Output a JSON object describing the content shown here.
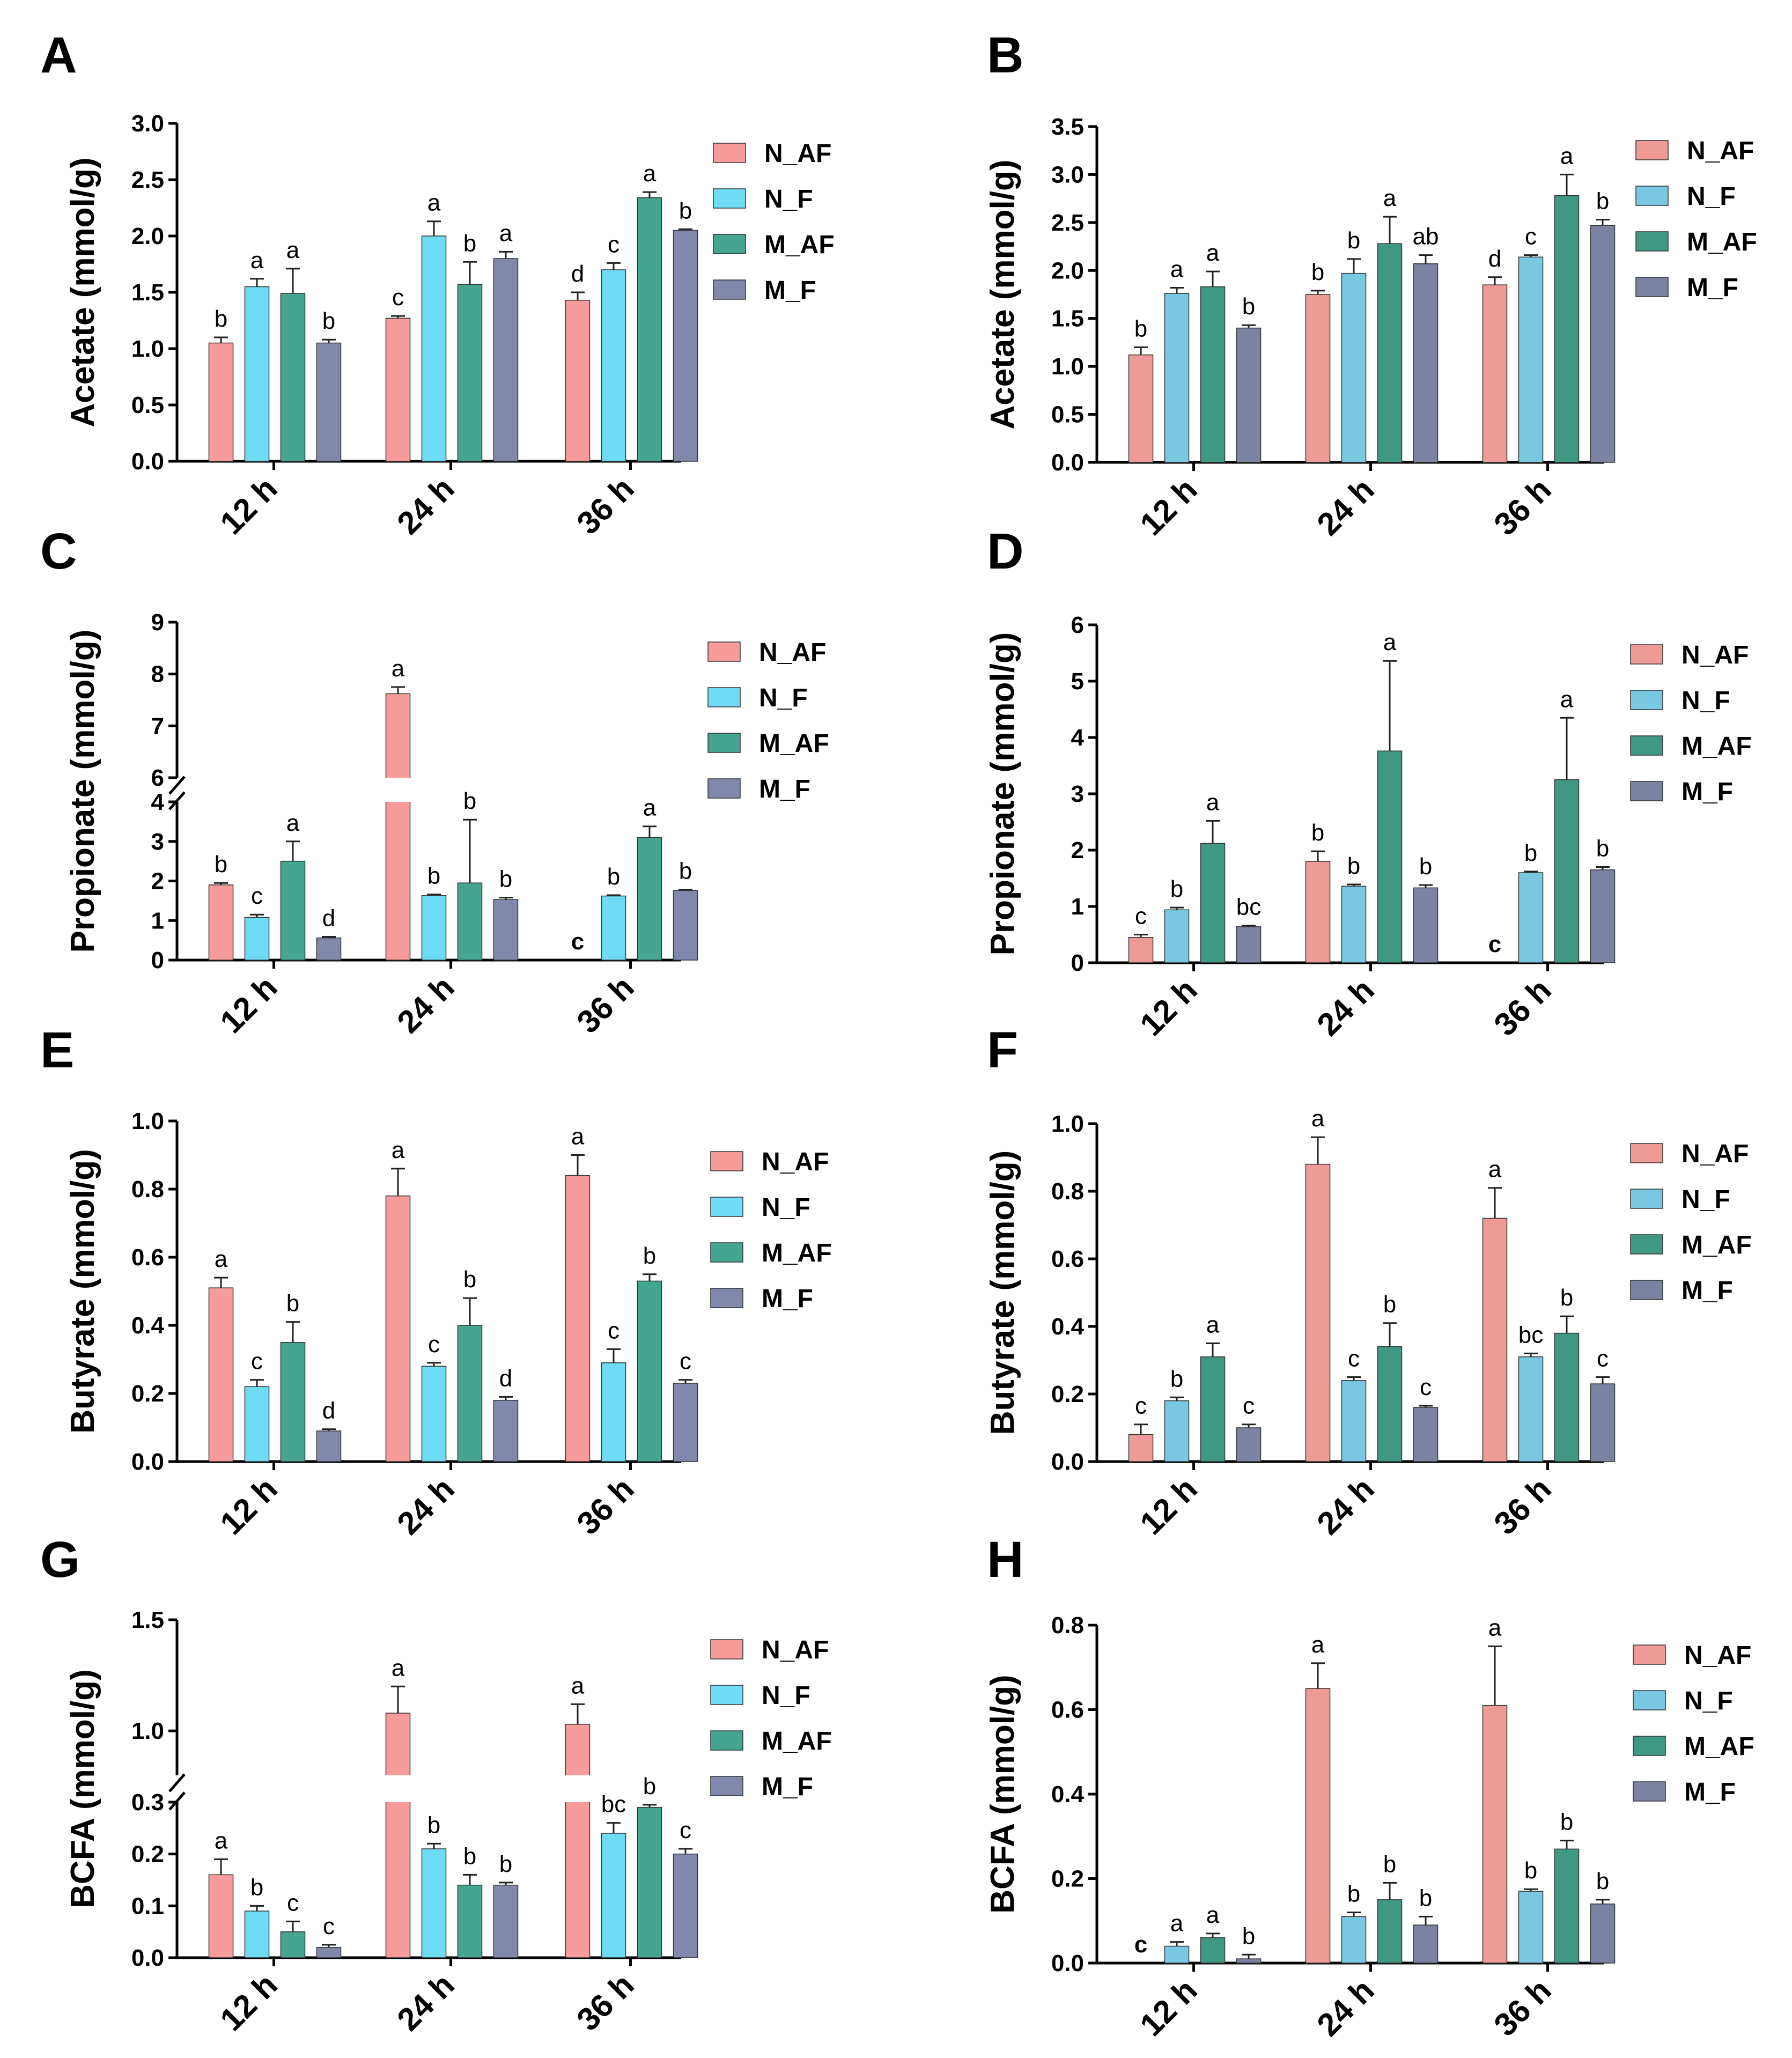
{
  "colors": {
    "N_AF_AG": "#F89B9B",
    "N_F_AG": "#6EDCF4",
    "M_AF_AG": "#44A690",
    "M_F_AG": "#8288AC",
    "N_AF_BH": "#EE9B98",
    "N_F_BH": "#78C8E2",
    "M_AF_BH": "#3E9882",
    "M_F_BH": "#7C82A2",
    "axis": "#000000"
  },
  "chart_data": [
    {
      "panel": "A",
      "type": "bar",
      "ylabel": "Acetate (mmol/g)",
      "categories": [
        "12 h",
        "24 h",
        "36 h"
      ],
      "legend": [
        "N_AF",
        "N_F",
        "M_AF",
        "M_F"
      ],
      "yticks": [
        "0.0",
        "0.5",
        "1.0",
        "1.5",
        "2.0",
        "2.5",
        "3.0"
      ],
      "ylim": [
        0,
        3.0
      ],
      "series": [
        {
          "name": "N_AF",
          "values": [
            1.05,
            1.27,
            1.43
          ],
          "errors": [
            0.05,
            0.02,
            0.07
          ],
          "letters": [
            "b",
            "c",
            "d"
          ]
        },
        {
          "name": "N_F",
          "values": [
            1.55,
            2.0,
            1.7
          ],
          "errors": [
            0.07,
            0.13,
            0.06
          ],
          "letters": [
            "a",
            "a",
            "c"
          ]
        },
        {
          "name": "M_AF",
          "values": [
            1.49,
            1.57,
            2.34
          ],
          "errors": [
            0.22,
            0.2,
            0.05
          ],
          "letters": [
            "a",
            "b",
            "a"
          ]
        },
        {
          "name": "M_F",
          "values": [
            1.05,
            1.8,
            2.05
          ],
          "errors": [
            0.03,
            0.06,
            0.01
          ],
          "letters": [
            "b",
            "a",
            "b"
          ]
        }
      ]
    },
    {
      "panel": "B",
      "type": "bar",
      "ylabel": "Acetate (mmol/g)",
      "categories": [
        "12 h",
        "24 h",
        "36 h"
      ],
      "legend": [
        "N_AF",
        "N_F",
        "M_AF",
        "M_F"
      ],
      "yticks": [
        "0.0",
        "0.5",
        "1.0",
        "1.5",
        "2.0",
        "2.5",
        "3.0",
        "3.5"
      ],
      "ylim": [
        0,
        3.5
      ],
      "series": [
        {
          "name": "N_AF",
          "values": [
            1.12,
            1.75,
            1.85
          ],
          "errors": [
            0.08,
            0.04,
            0.08
          ],
          "letters": [
            "b",
            "b",
            "d"
          ]
        },
        {
          "name": "N_F",
          "values": [
            1.76,
            1.97,
            2.14
          ],
          "errors": [
            0.06,
            0.15,
            0.02
          ],
          "letters": [
            "a",
            "b",
            "c"
          ]
        },
        {
          "name": "M_AF",
          "values": [
            1.83,
            2.28,
            2.78
          ],
          "errors": [
            0.16,
            0.28,
            0.22
          ],
          "letters": [
            "a",
            "a",
            "a"
          ]
        },
        {
          "name": "M_F",
          "values": [
            1.4,
            2.07,
            2.47
          ],
          "errors": [
            0.03,
            0.09,
            0.06
          ],
          "letters": [
            "b",
            "ab",
            "b"
          ]
        }
      ]
    },
    {
      "panel": "C",
      "type": "bar",
      "ylabel": "Propionate (mmol/g)",
      "categories": [
        "12 h",
        "24 h",
        "36 h"
      ],
      "legend": [
        "N_AF",
        "N_F",
        "M_AF",
        "M_F"
      ],
      "yticks": [
        "0",
        "1",
        "2",
        "3",
        "4",
        "6",
        "7",
        "8",
        "9"
      ],
      "axis_break": {
        "lower": [
          0,
          4
        ],
        "upper": [
          6,
          9
        ]
      },
      "series": [
        {
          "name": "N_AF",
          "values": [
            1.9,
            7.62,
            0
          ],
          "errors": [
            0.05,
            0.13,
            0
          ],
          "letters": [
            "b",
            "a",
            "c"
          ]
        },
        {
          "name": "N_F",
          "values": [
            1.08,
            1.63,
            1.62
          ],
          "errors": [
            0.07,
            0.03,
            0.02
          ],
          "letters": [
            "c",
            "b",
            "b"
          ]
        },
        {
          "name": "M_AF",
          "values": [
            2.5,
            1.95,
            3.1
          ],
          "errors": [
            0.5,
            1.6,
            0.28
          ],
          "letters": [
            "a",
            "b",
            "a"
          ]
        },
        {
          "name": "M_F",
          "values": [
            0.56,
            1.53,
            1.76
          ],
          "errors": [
            0.03,
            0.05,
            0.02
          ],
          "letters": [
            "d",
            "b",
            "b"
          ]
        }
      ]
    },
    {
      "panel": "D",
      "type": "bar",
      "ylabel": "Propionate (mmol/g)",
      "categories": [
        "12 h",
        "24 h",
        "36 h"
      ],
      "legend": [
        "N_AF",
        "N_F",
        "M_AF",
        "M_F"
      ],
      "yticks": [
        "0",
        "1",
        "2",
        "3",
        "4",
        "5",
        "6"
      ],
      "ylim": [
        0,
        6
      ],
      "series": [
        {
          "name": "N_AF",
          "values": [
            0.45,
            1.8,
            0
          ],
          "errors": [
            0.05,
            0.18,
            0
          ],
          "letters": [
            "c",
            "b",
            "c"
          ]
        },
        {
          "name": "N_F",
          "values": [
            0.94,
            1.36,
            1.6
          ],
          "errors": [
            0.04,
            0.03,
            0.02
          ],
          "letters": [
            "b",
            "b",
            "b"
          ]
        },
        {
          "name": "M_AF",
          "values": [
            2.12,
            3.76,
            3.25
          ],
          "errors": [
            0.4,
            1.6,
            1.1
          ],
          "letters": [
            "a",
            "a",
            "a"
          ]
        },
        {
          "name": "M_F",
          "values": [
            0.64,
            1.33,
            1.65
          ],
          "errors": [
            0.02,
            0.05,
            0.05
          ],
          "letters": [
            "bc",
            "b",
            "b"
          ]
        }
      ]
    },
    {
      "panel": "E",
      "type": "bar",
      "ylabel": "Butyrate (mmol/g)",
      "categories": [
        "12 h",
        "24 h",
        "36 h"
      ],
      "legend": [
        "N_AF",
        "N_F",
        "M_AF",
        "M_F"
      ],
      "yticks": [
        "0.0",
        "0.2",
        "0.4",
        "0.6",
        "0.8",
        "1.0"
      ],
      "ylim": [
        0,
        1.0
      ],
      "series": [
        {
          "name": "N_AF",
          "values": [
            0.51,
            0.78,
            0.84
          ],
          "errors": [
            0.03,
            0.08,
            0.06
          ],
          "letters": [
            "a",
            "a",
            "a"
          ]
        },
        {
          "name": "N_F",
          "values": [
            0.22,
            0.28,
            0.29
          ],
          "errors": [
            0.02,
            0.01,
            0.04
          ],
          "letters": [
            "c",
            "c",
            "c"
          ]
        },
        {
          "name": "M_AF",
          "values": [
            0.35,
            0.4,
            0.53
          ],
          "errors": [
            0.06,
            0.08,
            0.02
          ],
          "letters": [
            "b",
            "b",
            "b"
          ]
        },
        {
          "name": "M_F",
          "values": [
            0.09,
            0.18,
            0.23
          ],
          "errors": [
            0.005,
            0.01,
            0.01
          ],
          "letters": [
            "d",
            "d",
            "c"
          ]
        }
      ]
    },
    {
      "panel": "F",
      "type": "bar",
      "ylabel": "Butyrate (mmol/g)",
      "categories": [
        "12 h",
        "24 h",
        "36 h"
      ],
      "legend": [
        "N_AF",
        "N_F",
        "M_AF",
        "M_F"
      ],
      "yticks": [
        "0.0",
        "0.2",
        "0.4",
        "0.6",
        "0.8",
        "1.0"
      ],
      "ylim": [
        0,
        1.0
      ],
      "series": [
        {
          "name": "N_AF",
          "values": [
            0.08,
            0.88,
            0.72
          ],
          "errors": [
            0.03,
            0.08,
            0.09
          ],
          "letters": [
            "c",
            "a",
            "a"
          ]
        },
        {
          "name": "N_F",
          "values": [
            0.18,
            0.24,
            0.31
          ],
          "errors": [
            0.01,
            0.01,
            0.01
          ],
          "letters": [
            "b",
            "c",
            "bc"
          ]
        },
        {
          "name": "M_AF",
          "values": [
            0.31,
            0.34,
            0.38
          ],
          "errors": [
            0.04,
            0.07,
            0.05
          ],
          "letters": [
            "a",
            "b",
            "b"
          ]
        },
        {
          "name": "M_F",
          "values": [
            0.1,
            0.16,
            0.23
          ],
          "errors": [
            0.01,
            0.005,
            0.02
          ],
          "letters": [
            "c",
            "c",
            "c"
          ]
        }
      ]
    },
    {
      "panel": "G",
      "type": "bar",
      "ylabel": "BCFA (mmol/g)",
      "categories": [
        "12 h",
        "24 h",
        "36 h"
      ],
      "legend": [
        "N_AF",
        "N_F",
        "M_AF",
        "M_F"
      ],
      "yticks": [
        "0.0",
        "0.1",
        "0.2",
        "0.3",
        "1.0",
        "1.5"
      ],
      "axis_break": {
        "lower": [
          0,
          0.3
        ],
        "upper": [
          0.8,
          1.5
        ]
      },
      "series": [
        {
          "name": "N_AF",
          "values": [
            0.16,
            1.08,
            1.03
          ],
          "errors": [
            0.03,
            0.12,
            0.09
          ],
          "letters": [
            "a",
            "a",
            "a"
          ]
        },
        {
          "name": "N_F",
          "values": [
            0.09,
            0.21,
            0.24
          ],
          "errors": [
            0.01,
            0.01,
            0.02
          ],
          "letters": [
            "b",
            "b",
            "bc"
          ]
        },
        {
          "name": "M_AF",
          "values": [
            0.05,
            0.14,
            0.29
          ],
          "errors": [
            0.02,
            0.02,
            0.005
          ],
          "letters": [
            "c",
            "b",
            "b"
          ]
        },
        {
          "name": "M_F",
          "values": [
            0.02,
            0.14,
            0.2
          ],
          "errors": [
            0.005,
            0.005,
            0.01
          ],
          "letters": [
            "c",
            "b",
            "c"
          ]
        }
      ]
    },
    {
      "panel": "H",
      "type": "bar",
      "ylabel": "BCFA (mmol/g)",
      "categories": [
        "12 h",
        "24 h",
        "36 h"
      ],
      "legend": [
        "N_AF",
        "N_F",
        "M_AF",
        "M_F"
      ],
      "yticks": [
        "0.0",
        "0.2",
        "0.4",
        "0.6",
        "0.8"
      ],
      "ylim": [
        0,
        0.8
      ],
      "series": [
        {
          "name": "N_AF",
          "values": [
            0,
            0.65,
            0.61
          ],
          "errors": [
            0,
            0.06,
            0.14
          ],
          "letters": [
            "c",
            "a",
            "a"
          ]
        },
        {
          "name": "N_F",
          "values": [
            0.04,
            0.11,
            0.17
          ],
          "errors": [
            0.01,
            0.01,
            0.005
          ],
          "letters": [
            "a",
            "b",
            "b"
          ]
        },
        {
          "name": "M_AF",
          "values": [
            0.06,
            0.15,
            0.27
          ],
          "errors": [
            0.01,
            0.04,
            0.02
          ],
          "letters": [
            "a",
            "b",
            "b"
          ]
        },
        {
          "name": "M_F",
          "values": [
            0.01,
            0.09,
            0.14
          ],
          "errors": [
            0.01,
            0.02,
            0.01
          ],
          "letters": [
            "b",
            "b",
            "b"
          ]
        }
      ]
    }
  ]
}
